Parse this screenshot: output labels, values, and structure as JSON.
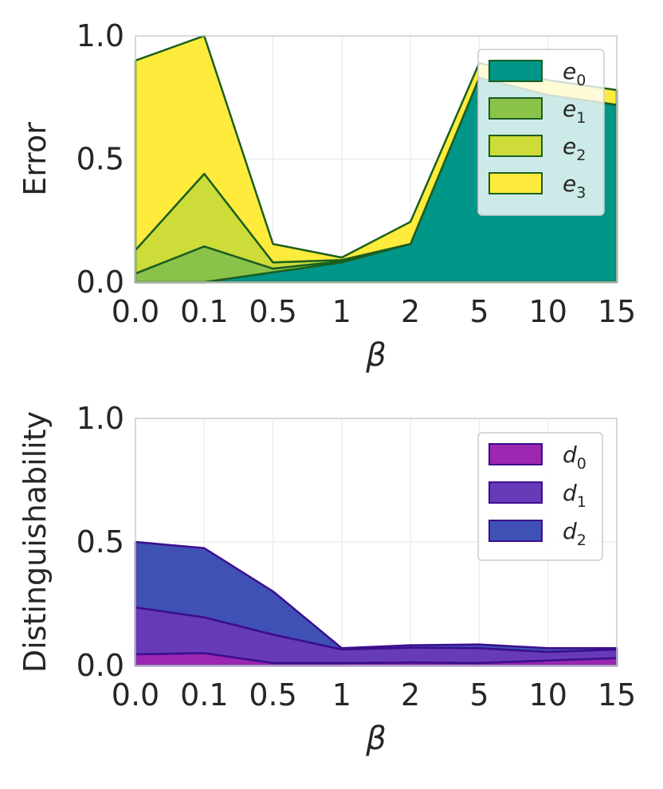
{
  "chart_data": [
    {
      "type": "area",
      "stacked": true,
      "categories": [
        "0.0",
        "0.1",
        "0.5",
        "1",
        "2",
        "5",
        "10",
        "15"
      ],
      "xlabel": "β",
      "ylabel": "Error",
      "ylim": [
        0,
        1
      ],
      "yticks": [
        "0.0",
        "0.5",
        "1.0"
      ],
      "grid": true,
      "legend_position": "top-right",
      "series": [
        {
          "name": "e",
          "sub": "0",
          "color": "#009688",
          "values": [
            0.0,
            0.0,
            0.04,
            0.08,
            0.155,
            0.83,
            0.76,
            0.72
          ]
        },
        {
          "name": "e",
          "sub": "1",
          "color": "#8bc34a",
          "values": [
            0.035,
            0.145,
            0.015,
            0.005,
            0.0,
            0.0,
            0.0,
            0.0
          ]
        },
        {
          "name": "e",
          "sub": "2",
          "color": "#cddc39",
          "values": [
            0.095,
            0.295,
            0.025,
            0.005,
            0.0,
            0.0,
            0.0,
            0.0
          ]
        },
        {
          "name": "e",
          "sub": "3",
          "color": "#ffeb3b",
          "values": [
            0.77,
            0.56,
            0.075,
            0.01,
            0.09,
            0.06,
            0.06,
            0.06
          ]
        }
      ]
    },
    {
      "type": "area",
      "stacked": true,
      "categories": [
        "0.0",
        "0.1",
        "0.5",
        "1",
        "2",
        "5",
        "10",
        "15"
      ],
      "xlabel": "β",
      "ylabel": "Distinguishability",
      "ylim": [
        0,
        1
      ],
      "yticks": [
        "0.0",
        "0.5",
        "1.0"
      ],
      "grid": true,
      "legend_position": "top-right",
      "series": [
        {
          "name": "d",
          "sub": "0",
          "color": "#9c27b0",
          "values": [
            0.045,
            0.05,
            0.01,
            0.01,
            0.012,
            0.01,
            0.02,
            0.03
          ]
        },
        {
          "name": "d",
          "sub": "1",
          "color": "#673ab7",
          "values": [
            0.19,
            0.145,
            0.115,
            0.055,
            0.06,
            0.06,
            0.035,
            0.035
          ]
        },
        {
          "name": "d",
          "sub": "2",
          "color": "#3f51b5",
          "values": [
            0.265,
            0.28,
            0.175,
            0.005,
            0.01,
            0.015,
            0.015,
            0.005
          ]
        }
      ]
    }
  ]
}
